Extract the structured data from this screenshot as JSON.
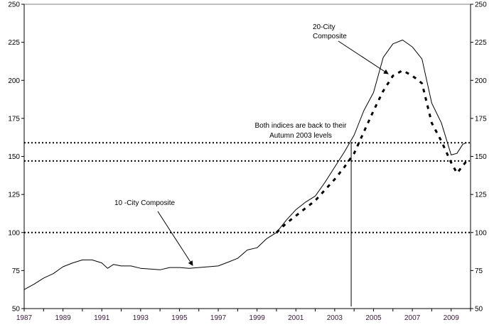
{
  "chart_data": {
    "type": "line",
    "title": "",
    "xlabel": "",
    "ylabel": "",
    "xlim": [
      1987,
      2010
    ],
    "ylim": [
      50,
      250
    ],
    "grid": false,
    "x_ticks": [
      "1987",
      "1989",
      "1991",
      "1993",
      "1995",
      "1997",
      "1999",
      "2001",
      "2003",
      "2005",
      "2007",
      "2009"
    ],
    "y_ticks": [
      50,
      75,
      100,
      125,
      150,
      175,
      200,
      225,
      250
    ],
    "series": [
      {
        "name": "10-City Composite",
        "style": "solid",
        "color": "#000000",
        "x": [
          1987,
          1987.5,
          1988,
          1988.5,
          1989,
          1989.5,
          1990,
          1990.5,
          1991,
          1991.3,
          1991.6,
          1992,
          1992.5,
          1993,
          1993.5,
          1994,
          1994.5,
          1995,
          1995.5,
          1996,
          1996.5,
          1997,
          1997.5,
          1998,
          1998.5,
          1999,
          1999.5,
          2000,
          2000.5,
          2001,
          2001.5,
          2002,
          2002.5,
          2003,
          2003.5,
          2004,
          2004.5,
          2005,
          2005.5,
          2006,
          2006.5,
          2007,
          2007.5,
          2008,
          2008.5,
          2009,
          2009.3,
          2009.6,
          2009.8
        ],
        "y": [
          62.5,
          66,
          70,
          73,
          77.5,
          80,
          82,
          82,
          80,
          76.5,
          79,
          78,
          78,
          76.5,
          76,
          75.5,
          77,
          77,
          76.5,
          77,
          77.5,
          78,
          80.5,
          83,
          88.5,
          90,
          96,
          100,
          108,
          115,
          120,
          124,
          133,
          143,
          153,
          164,
          180,
          192,
          215,
          224,
          226.5,
          222,
          214,
          185,
          172,
          151,
          152,
          158,
          159
        ]
      },
      {
        "name": "20-City Composite",
        "style": "dashed",
        "color": "#000000",
        "x": [
          2000,
          2000.5,
          2001,
          2001.5,
          2002,
          2002.5,
          2003,
          2003.5,
          2004,
          2004.5,
          2005,
          2005.5,
          2006,
          2006.5,
          2007,
          2007.5,
          2008,
          2008.5,
          2009,
          2009.3,
          2009.8
        ],
        "y": [
          100,
          106,
          111,
          116,
          121,
          128,
          135,
          143,
          152,
          166,
          180,
          193,
          203,
          206.5,
          203,
          198,
          172,
          160,
          146,
          139,
          147
        ]
      }
    ],
    "reference_lines": [
      159,
      147,
      100
    ],
    "vertical_marker": 2003.85,
    "annotations": [
      {
        "lines": [
          "20-City",
          "Composite"
        ]
      },
      {
        "lines": [
          "10 -City Composite"
        ]
      },
      {
        "lines": [
          "Both indices are back to their",
          "Autumn 2003 levels"
        ]
      }
    ]
  }
}
